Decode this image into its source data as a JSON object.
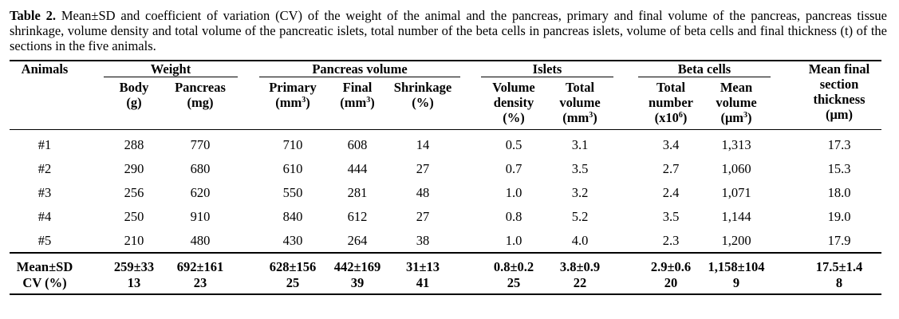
{
  "caption": {
    "label": "Table 2.",
    "text": " Mean±SD and coefficient of variation (CV) of the weight of the animal and the pancreas, primary and final volume of the pancreas, pancreas tissue shrinkage, volume density and total volume of the pancreatic islets, total number of the beta cells in pancreas islets, volume of beta cells and final thickness (t) of the sections in the five animals."
  },
  "groups": {
    "weight": "Weight",
    "pancreas_volume": "Pancreas volume",
    "islets": "Islets",
    "beta_cells": "Beta cells"
  },
  "headers": {
    "animals": "Animals",
    "body": "Body",
    "body_unit": "(g)",
    "pancreas": "Pancreas",
    "pancreas_unit": "(mg)",
    "primary": "Primary",
    "primary_unit": "(mm",
    "final": "Final",
    "final_unit": "(mm",
    "cube": "3",
    "close": ")",
    "shrinkage": "Shrinkage",
    "shrinkage_unit": "(%)",
    "volume_density_1": "Volume",
    "volume_density_2": "density",
    "volume_density_unit": "(%)",
    "total_volume_1": "Total",
    "total_volume_2": "volume",
    "total_volume_unit": "(mm",
    "total_number_1": "Total",
    "total_number_2": "number",
    "total_number_unit": "(x10",
    "six": "6",
    "mean_volume_1": "Mean",
    "mean_volume_2": "volume",
    "mean_volume_unit": "(μm",
    "thickness_1": "Mean final",
    "thickness_2": "section",
    "thickness_3": "thickness",
    "thickness_unit": "(μm)"
  },
  "rows": [
    {
      "animal": "#1",
      "cells": [
        "288",
        "770",
        "710",
        "608",
        "14",
        "0.5",
        "3.1",
        "3.4",
        "1,313",
        "17.3"
      ]
    },
    {
      "animal": "#2",
      "cells": [
        "290",
        "680",
        "610",
        "444",
        "27",
        "0.7",
        "3.5",
        "2.7",
        "1,060",
        "15.3"
      ]
    },
    {
      "animal": "#3",
      "cells": [
        "256",
        "620",
        "550",
        "281",
        "48",
        "1.0",
        "3.2",
        "2.4",
        "1,071",
        "18.0"
      ]
    },
    {
      "animal": "#4",
      "cells": [
        "250",
        "910",
        "840",
        "612",
        "27",
        "0.8",
        "5.2",
        "3.5",
        "1,144",
        "19.0"
      ]
    },
    {
      "animal": "#5",
      "cells": [
        "210",
        "480",
        "430",
        "264",
        "38",
        "1.0",
        "4.0",
        "2.3",
        "1,200",
        "17.9"
      ]
    }
  ],
  "summary": [
    {
      "label": "Mean±SD",
      "cells": [
        "259±33",
        "692±161",
        "628±156",
        "442±169",
        "31±13",
        "0.8±0.2",
        "3.8±0.9",
        "2.9±0.6",
        "1,158±104",
        "17.5±1.4"
      ]
    },
    {
      "label": "CV (%)",
      "cells": [
        "13",
        "23",
        "25",
        "39",
        "41",
        "25",
        "22",
        "20",
        "9",
        "8"
      ]
    }
  ]
}
